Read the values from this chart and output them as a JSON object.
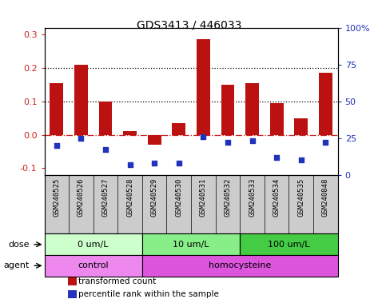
{
  "title": "GDS3413 / 446033",
  "samples": [
    "GSM240525",
    "GSM240526",
    "GSM240527",
    "GSM240528",
    "GSM240529",
    "GSM240530",
    "GSM240531",
    "GSM240532",
    "GSM240533",
    "GSM240534",
    "GSM240535",
    "GSM240848"
  ],
  "red_values": [
    0.155,
    0.21,
    0.1,
    0.01,
    -0.03,
    0.035,
    0.285,
    0.15,
    0.155,
    0.095,
    0.05,
    0.185
  ],
  "blue_pct": [
    20,
    25,
    17,
    7,
    8,
    8,
    26,
    22,
    23,
    12,
    10,
    22
  ],
  "red_color": "#bb1111",
  "blue_color": "#2233bb",
  "ylim_left": [
    -0.12,
    0.32
  ],
  "ylim_right": [
    0,
    100
  ],
  "yticks_left": [
    -0.1,
    0.0,
    0.1,
    0.2,
    0.3
  ],
  "yticks_right": [
    0,
    25,
    50,
    75,
    100
  ],
  "yticklabels_right": [
    "0",
    "25",
    "50",
    "75",
    "100%"
  ],
  "hlines": [
    0.1,
    0.2
  ],
  "zero_line": 0.0,
  "dose_groups": [
    {
      "label": "0 um/L",
      "start": 0,
      "end": 4,
      "color": "#ccffcc"
    },
    {
      "label": "10 um/L",
      "start": 4,
      "end": 8,
      "color": "#88ee88"
    },
    {
      "label": "100 um/L",
      "start": 8,
      "end": 12,
      "color": "#44cc44"
    }
  ],
  "agent_groups": [
    {
      "label": "control",
      "start": 0,
      "end": 4,
      "color": "#ee88ee"
    },
    {
      "label": "homocysteine",
      "start": 4,
      "end": 12,
      "color": "#dd55dd"
    }
  ],
  "dose_label": "dose",
  "agent_label": "agent",
  "legend_red": "transformed count",
  "legend_blue": "percentile rank within the sample",
  "bar_width": 0.55,
  "bg_color": "#ffffff",
  "zero_line_color": "#cc2222",
  "xtick_bg": "#cccccc",
  "left_tick_color": "#cc2222",
  "right_tick_color": "#2233bb"
}
